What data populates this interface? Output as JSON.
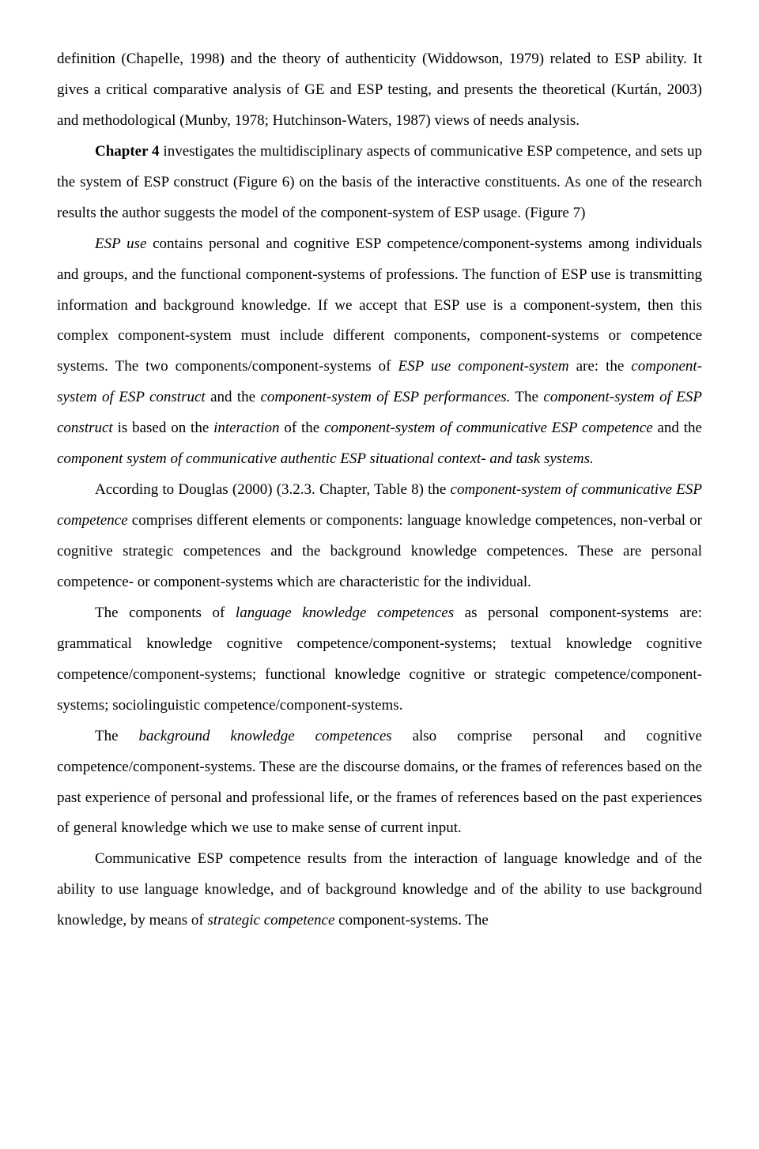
{
  "para1_pre": "definition (Chapelle, 1998) and the theory of authenticity (Widdowson, 1979) related to ESP ability. It gives a critical comparative analysis of GE and ESP testing, and presents the theoretical (Kurtán, 2003) and methodological (Munby, 1978; Hutchinson-Waters, 1987) views of needs analysis.",
  "para2_bold": "Chapter 4",
  "para2_rest": " investigates the multidisciplinary aspects of communicative ESP competence, and sets up the system of ESP construct (Figure 6) on the basis of the interactive constituents. As one of the research results the author suggests the model of the component-system of ESP usage. (Figure 7)",
  "para3_a_it": "ESP use",
  "para3_a": " contains personal and cognitive ESP competence/component-systems among individuals and groups, and the functional component-systems of professions. The function of ESP use is transmitting information and background knowledge. If we accept that ESP use is a component-system, then this complex component-system must include different components, component-systems or competence systems. The two components/component-systems of ",
  "para3_b_it": "ESP use component-system",
  "para3_b": " are: the ",
  "para3_c_it": "component-system of ESP construct",
  "para3_c": " and the ",
  "para3_d_it": "component-system of ESP performances.",
  "para3_d": " The ",
  "para3_e_it": "component-system of ESP construct",
  "para3_e": " is based on the ",
  "para3_f_it": "interaction",
  "para3_f": " of the ",
  "para3_g_it": "component-system of communicative ESP competence",
  "para3_g": " and the ",
  "para3_h_it": "component system of communicative authentic ESP situational context- and task systems.",
  "para4_a": "According to Douglas (2000) (3.2.3. Chapter, Table 8) the ",
  "para4_b_it": "component-system of communicative ESP competence",
  "para4_b": " comprises different elements or components: language knowledge competences, non-verbal or cognitive strategic competences and the background knowledge competences. These are personal competence- or component-systems which are characteristic for the individual.",
  "para5_a": "The components of ",
  "para5_b_it": "language knowledge competences",
  "para5_b": " as personal component-systems are: grammatical knowledge cognitive competence/component-systems; textual knowledge cognitive competence/component-systems; functional knowledge cognitive or strategic competence/component-systems; sociolinguistic competence/component-systems.",
  "para6_a": "The ",
  "para6_b_it": "background knowledge competences",
  "para6_b": " also comprise personal and cognitive competence/component-systems. These are the discourse domains, or the frames of references based on the past experience of personal and professional life, or the frames of references based on the past experiences of general knowledge which we use to make sense of current input.",
  "para7_a": "Communicative ESP competence results from the interaction of language knowledge and of the ability to use language knowledge, and of background knowledge and of the ability to use background knowledge, by means of ",
  "para7_b_it": "strategic competence",
  "para7_b": " component-systems. The"
}
